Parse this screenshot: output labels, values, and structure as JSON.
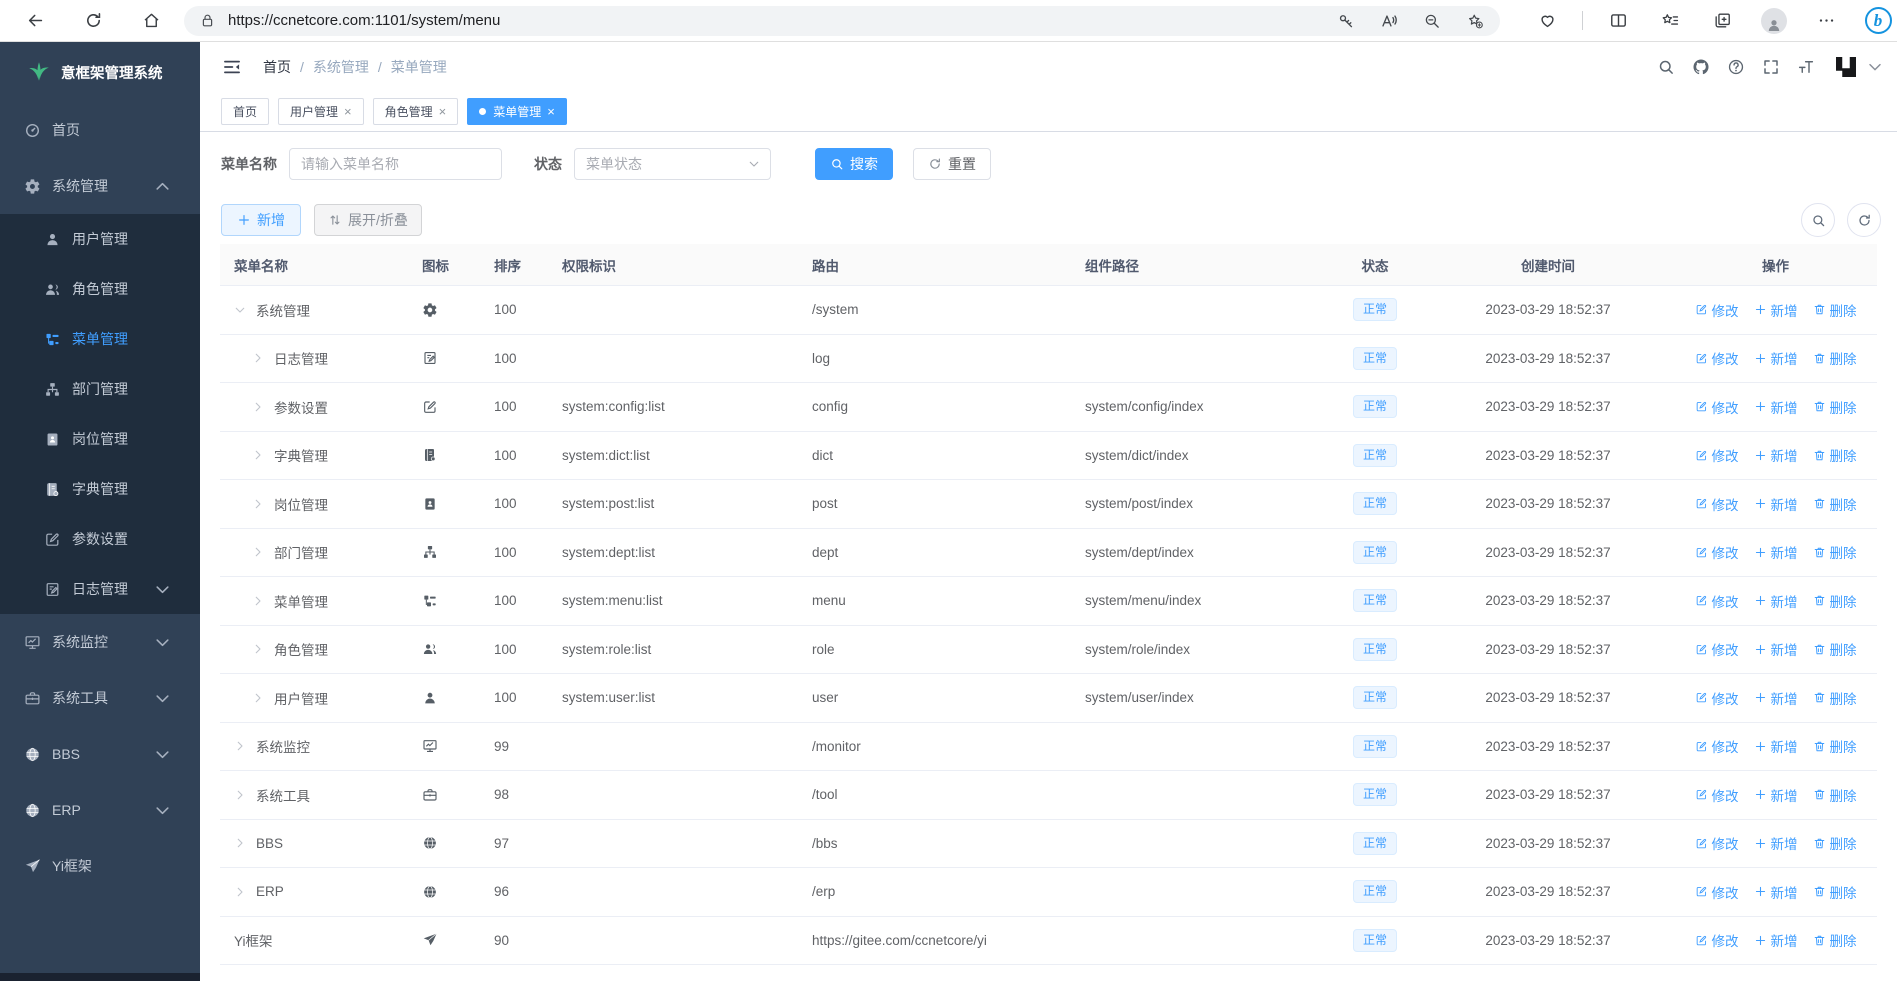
{
  "colors": {
    "primary": "#409eff",
    "sidebar_bg": "#304156",
    "submenu_bg": "#1f2d3d",
    "tag_bg": "#ecf5ff",
    "tag_border": "#d9ecff"
  },
  "browser": {
    "url": "https://ccnetcore.com:1101/system/menu",
    "left_icons": [
      "back-arrow",
      "reload",
      "home"
    ],
    "pill_left_icon": "lock",
    "pill_right_icons": [
      "password-key",
      "read-aloud",
      "zoom-out",
      "favorite-star-add"
    ],
    "right_icons": [
      "browser-essentials",
      "split-screen",
      "favorites-bar",
      "collections",
      "profile-avatar",
      "more-options",
      "bing"
    ]
  },
  "app": {
    "logo_title": "意框架管理系统"
  },
  "sidebar": {
    "items": [
      {
        "label": "首页",
        "icon": "dashboard",
        "level": 0
      },
      {
        "label": "系统管理",
        "icon": "gear",
        "level": 0,
        "caret": "up"
      },
      {
        "label": "用户管理",
        "icon": "user",
        "level": 1
      },
      {
        "label": "角色管理",
        "icon": "users",
        "level": 1
      },
      {
        "label": "菜单管理",
        "icon": "menu",
        "level": 1,
        "active": true
      },
      {
        "label": "部门管理",
        "icon": "dept",
        "level": 1
      },
      {
        "label": "岗位管理",
        "icon": "post",
        "level": 1
      },
      {
        "label": "字典管理",
        "icon": "dict",
        "level": 1
      },
      {
        "label": "参数设置",
        "icon": "config",
        "level": 1
      },
      {
        "label": "日志管理",
        "icon": "log",
        "level": 1,
        "caret": "down"
      },
      {
        "label": "系统监控",
        "icon": "monitor",
        "level": 0,
        "caret": "down"
      },
      {
        "label": "系统工具",
        "icon": "tool",
        "level": 0,
        "caret": "down"
      },
      {
        "label": "BBS",
        "icon": "globe",
        "level": 0,
        "caret": "down"
      },
      {
        "label": "ERP",
        "icon": "globe",
        "level": 0,
        "caret": "down"
      },
      {
        "label": "Yi框架",
        "icon": "plane",
        "level": 0
      }
    ]
  },
  "header": {
    "breadcrumb": [
      "首页",
      "系统管理",
      "菜单管理"
    ],
    "icons": [
      "search",
      "github",
      "question",
      "fullscreen",
      "font-size"
    ]
  },
  "tabs": [
    {
      "label": "首页",
      "closable": false,
      "active": false
    },
    {
      "label": "用户管理",
      "closable": true,
      "active": false
    },
    {
      "label": "角色管理",
      "closable": true,
      "active": false
    },
    {
      "label": "菜单管理",
      "closable": true,
      "active": true
    }
  ],
  "filters": {
    "name_label": "菜单名称",
    "name_placeholder": "请输入菜单名称",
    "status_label": "状态",
    "status_placeholder": "菜单状态",
    "search": "搜索",
    "reset": "重置"
  },
  "toolbar": {
    "add": "新增",
    "toggle": "展开/折叠"
  },
  "table": {
    "columns": [
      "菜单名称",
      "图标",
      "排序",
      "权限标识",
      "路由",
      "组件路径",
      "状态",
      "创建时间",
      "操作"
    ],
    "actions": [
      "修改",
      "新增",
      "删除"
    ],
    "rows": [
      {
        "name": "系统管理",
        "icon": "gear",
        "level": 0,
        "expand": "down",
        "sort": "100",
        "perms": "",
        "route": "/system",
        "component": "",
        "status": "正常",
        "created": "2023-03-29 18:52:37"
      },
      {
        "name": "日志管理",
        "icon": "log",
        "level": 1,
        "expand": "right",
        "sort": "100",
        "perms": "",
        "route": "log",
        "component": "",
        "status": "正常",
        "created": "2023-03-29 18:52:37"
      },
      {
        "name": "参数设置",
        "icon": "config",
        "level": 1,
        "expand": "right",
        "sort": "100",
        "perms": "system:config:list",
        "route": "config",
        "component": "system/config/index",
        "status": "正常",
        "created": "2023-03-29 18:52:37"
      },
      {
        "name": "字典管理",
        "icon": "dict",
        "level": 1,
        "expand": "right",
        "sort": "100",
        "perms": "system:dict:list",
        "route": "dict",
        "component": "system/dict/index",
        "status": "正常",
        "created": "2023-03-29 18:52:37"
      },
      {
        "name": "岗位管理",
        "icon": "post",
        "level": 1,
        "expand": "right",
        "sort": "100",
        "perms": "system:post:list",
        "route": "post",
        "component": "system/post/index",
        "status": "正常",
        "created": "2023-03-29 18:52:37"
      },
      {
        "name": "部门管理",
        "icon": "dept",
        "level": 1,
        "expand": "right",
        "sort": "100",
        "perms": "system:dept:list",
        "route": "dept",
        "component": "system/dept/index",
        "status": "正常",
        "created": "2023-03-29 18:52:37"
      },
      {
        "name": "菜单管理",
        "icon": "menu",
        "level": 1,
        "expand": "right",
        "sort": "100",
        "perms": "system:menu:list",
        "route": "menu",
        "component": "system/menu/index",
        "status": "正常",
        "created": "2023-03-29 18:52:37"
      },
      {
        "name": "角色管理",
        "icon": "users",
        "level": 1,
        "expand": "right",
        "sort": "100",
        "perms": "system:role:list",
        "route": "role",
        "component": "system/role/index",
        "status": "正常",
        "created": "2023-03-29 18:52:37"
      },
      {
        "name": "用户管理",
        "icon": "user",
        "level": 1,
        "expand": "right",
        "sort": "100",
        "perms": "system:user:list",
        "route": "user",
        "component": "system/user/index",
        "status": "正常",
        "created": "2023-03-29 18:52:37"
      },
      {
        "name": "系统监控",
        "icon": "monitor",
        "level": 0,
        "expand": "right",
        "sort": "99",
        "perms": "",
        "route": "/monitor",
        "component": "",
        "status": "正常",
        "created": "2023-03-29 18:52:37"
      },
      {
        "name": "系统工具",
        "icon": "tool",
        "level": 0,
        "expand": "right",
        "sort": "98",
        "perms": "",
        "route": "/tool",
        "component": "",
        "status": "正常",
        "created": "2023-03-29 18:52:37"
      },
      {
        "name": "BBS",
        "icon": "globe",
        "level": 0,
        "expand": "right",
        "sort": "97",
        "perms": "",
        "route": "/bbs",
        "component": "",
        "status": "正常",
        "created": "2023-03-29 18:52:37"
      },
      {
        "name": "ERP",
        "icon": "globe",
        "level": 0,
        "expand": "right",
        "sort": "96",
        "perms": "",
        "route": "/erp",
        "component": "",
        "status": "正常",
        "created": "2023-03-29 18:52:37"
      },
      {
        "name": "Yi框架",
        "icon": "plane",
        "level": 0,
        "expand": null,
        "sort": "90",
        "perms": "",
        "route": "https://gitee.com/ccnetcore/yi",
        "component": "",
        "status": "正常",
        "created": "2023-03-29 18:52:37"
      }
    ]
  }
}
